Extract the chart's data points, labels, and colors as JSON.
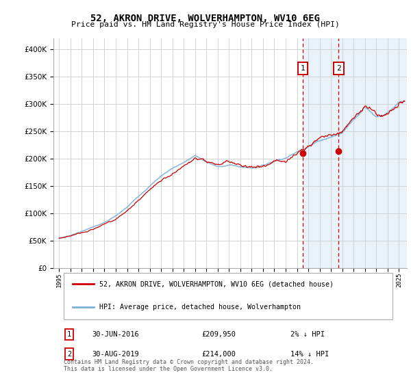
{
  "title": "52, AKRON DRIVE, WOLVERHAMPTON, WV10 6EG",
  "subtitle": "Price paid vs. HM Land Registry's House Price Index (HPI)",
  "legend_entry1": "52, AKRON DRIVE, WOLVERHAMPTON, WV10 6EG (detached house)",
  "legend_entry2": "HPI: Average price, detached house, Wolverhampton",
  "annotation1_label": "1",
  "annotation1_date": "30-JUN-2016",
  "annotation1_price": "£209,950",
  "annotation1_hpi": "2% ↓ HPI",
  "annotation2_label": "2",
  "annotation2_date": "30-AUG-2019",
  "annotation2_price": "£214,000",
  "annotation2_hpi": "14% ↓ HPI",
  "footer": "Contains HM Land Registry data © Crown copyright and database right 2024.\nThis data is licensed under the Open Government Licence v3.0.",
  "hpi_color": "#aec6e8",
  "hpi_line_color": "#7aafd4",
  "price_color": "#cc0000",
  "annotation_color": "#cc0000",
  "bg_color": "#ffffff",
  "plot_bg_color": "#ffffff",
  "grid_color": "#cccccc",
  "shade_color": "#d8e8f5",
  "ylim": [
    0,
    420000
  ],
  "yticks": [
    0,
    50000,
    100000,
    150000,
    200000,
    250000,
    300000,
    350000,
    400000
  ],
  "xlim_start": 1994.5,
  "xlim_end": 2025.7,
  "sale1_year": 2016.5,
  "sale2_year": 2019.67,
  "sale1_price": 209950,
  "sale2_price": 214000
}
